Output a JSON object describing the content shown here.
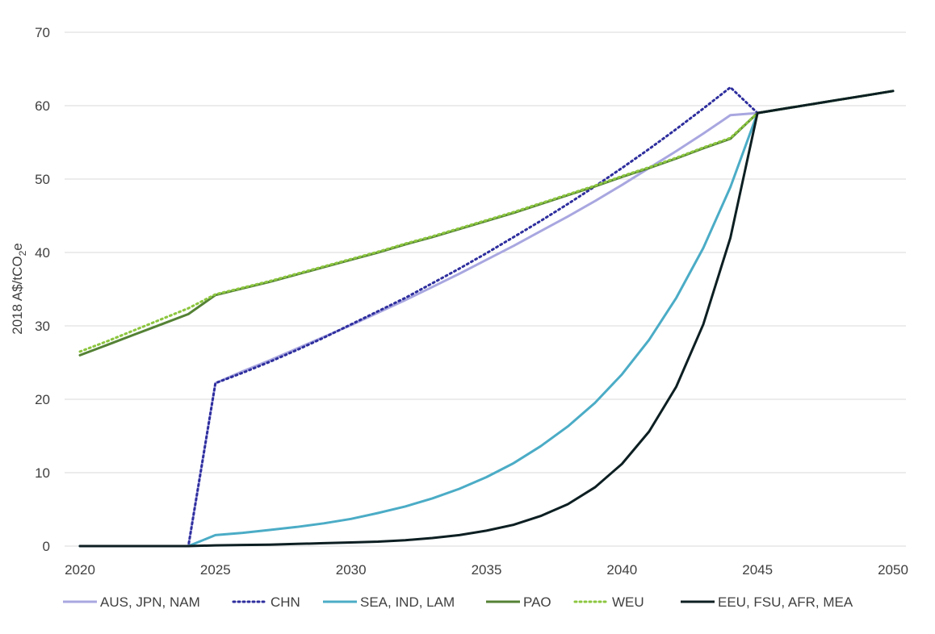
{
  "chart_data": {
    "type": "line",
    "title": "",
    "xlabel": "",
    "ylabel": {
      "prefix": "2018 A$/tCO",
      "sub": "2",
      "suffix": "e"
    },
    "xlim": [
      2020,
      2050
    ],
    "ylim": [
      0,
      70
    ],
    "x_ticks": [
      "2020",
      "2025",
      "2030",
      "2035",
      "2040",
      "2045",
      "2050"
    ],
    "y_ticks": [
      "0",
      "10",
      "20",
      "30",
      "40",
      "50",
      "60",
      "70"
    ],
    "grid": "horizontal",
    "legend_position": "bottom",
    "x": [
      2020,
      2021,
      2022,
      2023,
      2024,
      2025,
      2026,
      2027,
      2028,
      2029,
      2030,
      2031,
      2032,
      2033,
      2034,
      2035,
      2036,
      2037,
      2038,
      2039,
      2040,
      2041,
      2042,
      2043,
      2044,
      2045,
      2046,
      2047,
      2048,
      2049,
      2050
    ],
    "series": [
      {
        "name": "AUS, JPN, NAM",
        "color": "#a9a7e0",
        "style": "solid",
        "values": [
          0,
          0,
          0,
          0,
          0,
          22.2,
          23.8,
          25.3,
          26.9,
          28.5,
          30.1,
          31.8,
          33.5,
          35.3,
          37.1,
          39.0,
          40.9,
          42.9,
          44.9,
          47.0,
          49.2,
          51.5,
          53.8,
          56.2,
          58.7,
          59.0,
          59.6,
          60.2,
          60.8,
          61.4,
          62.0
        ]
      },
      {
        "name": "CHN",
        "color": "#2e2e9e",
        "style": "dotted",
        "values": [
          0,
          0,
          0,
          0,
          0,
          22.2,
          23.6,
          25.1,
          26.7,
          28.4,
          30.2,
          32.0,
          33.8,
          35.8,
          37.8,
          39.9,
          42.1,
          44.3,
          46.6,
          49.0,
          51.5,
          54.1,
          56.8,
          59.6,
          62.5,
          59.0,
          59.6,
          60.2,
          60.8,
          61.4,
          62.0
        ]
      },
      {
        "name": "SEA, IND, LAM",
        "color": "#4bacc6",
        "style": "solid",
        "values": [
          0,
          0,
          0,
          0,
          0,
          1.5,
          1.8,
          2.2,
          2.6,
          3.1,
          3.7,
          4.5,
          5.4,
          6.5,
          7.8,
          9.4,
          11.3,
          13.6,
          16.3,
          19.5,
          23.4,
          28.1,
          33.8,
          40.6,
          48.9,
          59.0,
          59.6,
          60.2,
          60.8,
          61.4,
          62.0
        ]
      },
      {
        "name": "PAO",
        "color": "#548235",
        "style": "solid",
        "values": [
          26.0,
          27.4,
          28.8,
          30.2,
          31.6,
          34.2,
          35.1,
          36.0,
          37.0,
          38.0,
          39.0,
          40.0,
          41.1,
          42.1,
          43.2,
          44.3,
          45.4,
          46.6,
          47.8,
          49.0,
          50.3,
          51.5,
          52.8,
          54.2,
          55.5,
          59.0,
          59.6,
          60.2,
          60.8,
          61.4,
          62.0
        ]
      },
      {
        "name": "WEU",
        "color": "#8cc63f",
        "style": "dotted",
        "values": [
          26.5,
          27.9,
          29.4,
          30.9,
          32.4,
          34.3,
          35.2,
          36.1,
          37.1,
          38.1,
          39.1,
          40.1,
          41.2,
          42.2,
          43.3,
          44.4,
          45.5,
          46.7,
          47.9,
          49.1,
          50.4,
          51.6,
          52.9,
          54.3,
          55.6,
          59.0,
          59.6,
          60.2,
          60.8,
          61.4,
          62.0
        ]
      },
      {
        "name": "EEU, FSU, AFR, MEA",
        "color": "#0d1f22",
        "style": "solid",
        "values": [
          0,
          0,
          0,
          0,
          0,
          0.1,
          0.15,
          0.2,
          0.3,
          0.4,
          0.5,
          0.6,
          0.8,
          1.1,
          1.5,
          2.1,
          2.9,
          4.1,
          5.7,
          8.0,
          11.2,
          15.6,
          21.7,
          30.2,
          42.0,
          59.0,
          59.6,
          60.2,
          60.8,
          61.4,
          62.0
        ]
      }
    ]
  }
}
